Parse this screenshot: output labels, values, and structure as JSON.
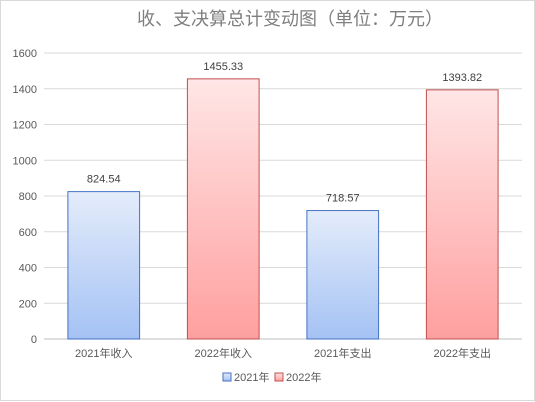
{
  "chart_data": {
    "type": "bar",
    "title": "收、支决算总计变动图（单位：万元）",
    "categories": [
      "2021年收入",
      "2022年收入",
      "2021年支出",
      "2022年支出"
    ],
    "values": [
      824.54,
      1455.33,
      718.57,
      1393.82
    ],
    "value_labels": [
      "824.54",
      "1455.33",
      "718.57",
      "1393.82"
    ],
    "bar_series": [
      "2021年",
      "2022年",
      "2021年",
      "2022年"
    ],
    "series": [
      {
        "name": "2021年",
        "color": "#4472c4"
      },
      {
        "name": "2022年",
        "color": "#c0504d"
      }
    ],
    "ylim": [
      0,
      1600
    ],
    "yticks": [
      0,
      200,
      400,
      600,
      800,
      1000,
      1200,
      1400,
      1600
    ],
    "ytick_labels": [
      "0",
      "200",
      "400",
      "600",
      "800",
      "1000",
      "1200",
      "1400",
      "1600"
    ],
    "grid": true,
    "legend": "bottom",
    "xlabel": "",
    "ylabel": ""
  }
}
